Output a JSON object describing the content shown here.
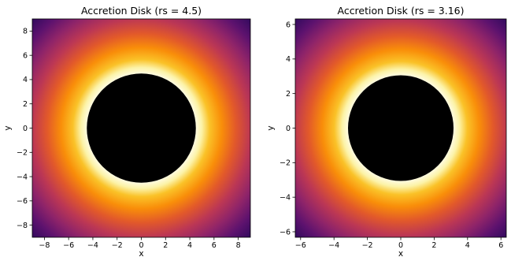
{
  "chart_data": [
    {
      "type": "heatmap",
      "title": "Accretion Disk (rs = 4.5)",
      "xlabel": "x",
      "ylabel": "y",
      "xlim": [
        -9,
        9
      ],
      "ylim": [
        -9,
        9
      ],
      "rs": 4.5,
      "xticks": [
        -8,
        -6,
        -4,
        -2,
        0,
        2,
        4,
        6,
        8
      ],
      "yticks": [
        -8,
        -6,
        -4,
        -2,
        0,
        2,
        4,
        6,
        8
      ],
      "colormap": "inferno",
      "hole_color": "#000000",
      "grid": false
    },
    {
      "type": "heatmap",
      "title": "Accretion Disk (rs = 3.16)",
      "xlabel": "x",
      "ylabel": "y",
      "xlim": [
        -6.32,
        6.32
      ],
      "ylim": [
        -6.32,
        6.32
      ],
      "rs": 3.16,
      "xticks": [
        -6,
        -4,
        -2,
        0,
        2,
        4,
        6
      ],
      "yticks": [
        -6,
        -4,
        -2,
        0,
        2,
        4,
        6
      ],
      "colormap": "inferno",
      "hole_color": "#000000",
      "grid": false
    }
  ]
}
